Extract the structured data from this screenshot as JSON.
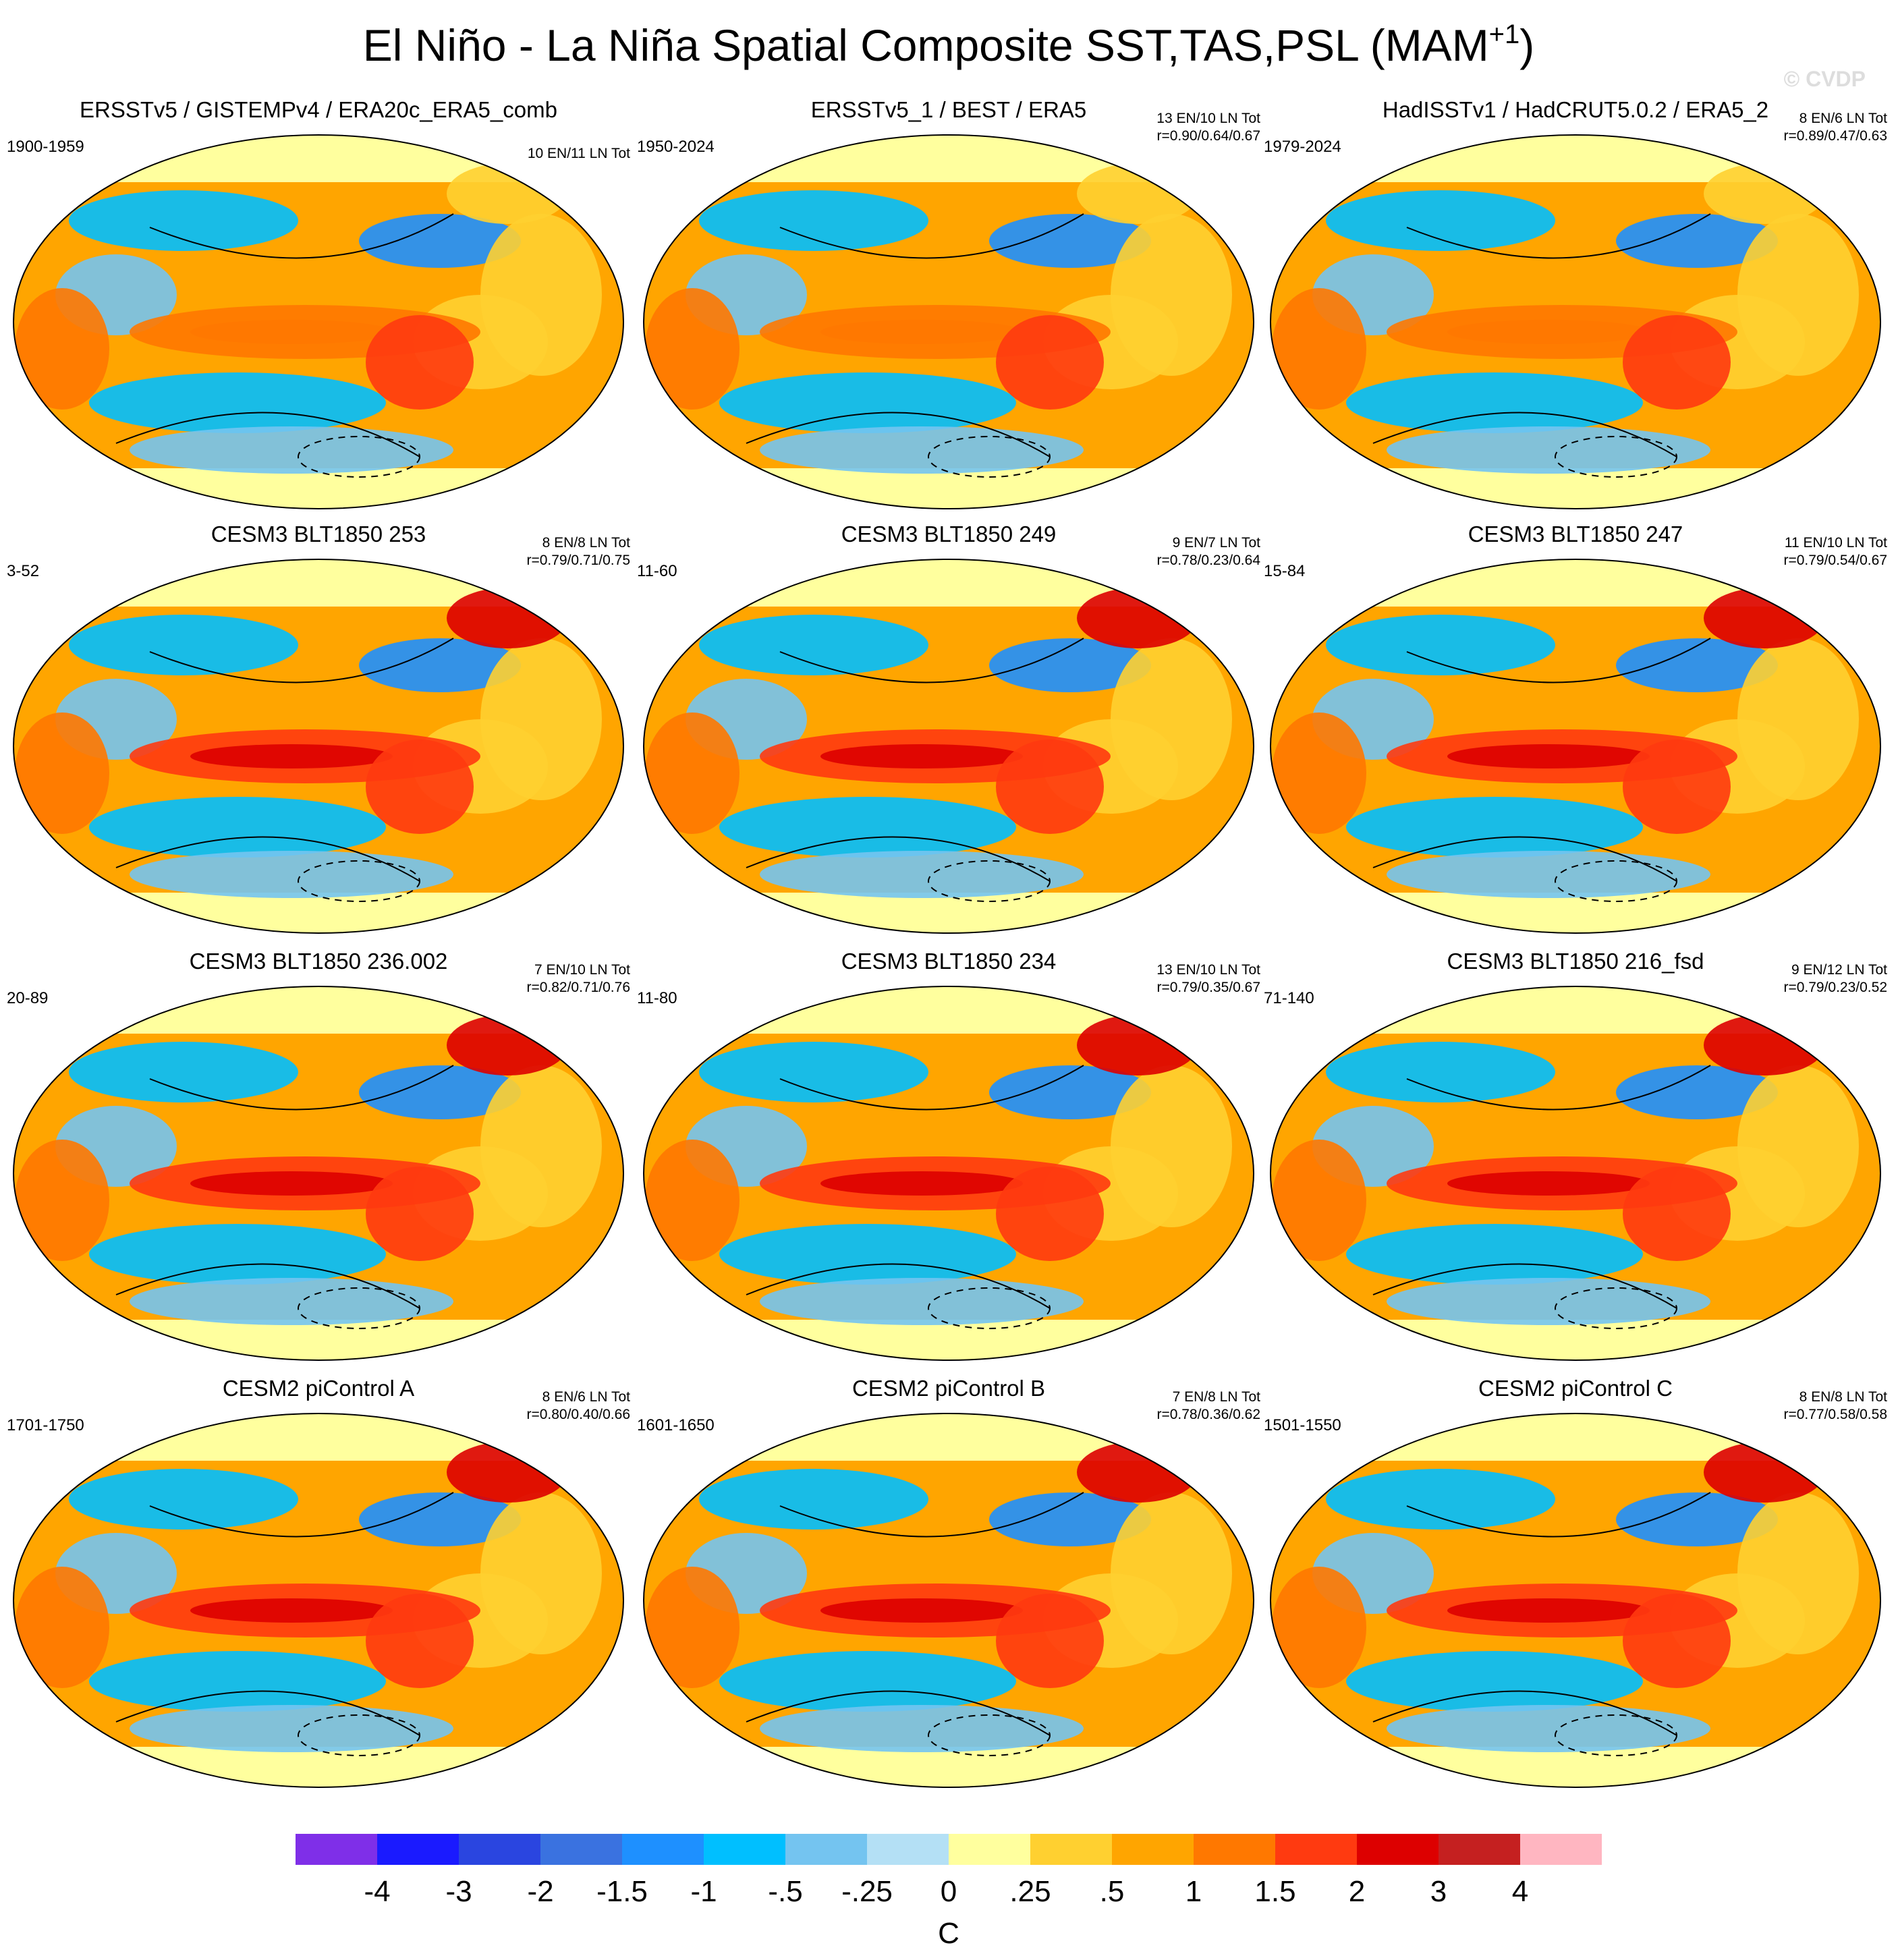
{
  "title": "El Niño - La Niña Spatial Composite SST,TAS,PSL (MAM",
  "title_superscript": "+1",
  "title_end": ")",
  "watermark": "© CVDP",
  "panels": [
    {
      "title": "ERSSTv5 / GISTEMPv4 / ERA20c_ERA5_comb",
      "period": "1900-1959",
      "counts": "10 EN/11 LN Tot"
    },
    {
      "title": "ERSSTv5_1 / BEST / ERA5",
      "period": "1950-2024",
      "counts": "13 EN/10 LN Tot",
      "correlation": "r=0.90/0.64/0.67"
    },
    {
      "title": "HadISSTv1 / HadCRUT5.0.2 / ERA5_2",
      "period": "1979-2024",
      "counts": "8 EN/6 LN Tot",
      "correlation": "r=0.89/0.47/0.63"
    },
    {
      "title": "CESM3 BLT1850 253",
      "period": "3-52",
      "counts": "8 EN/8 LN Tot",
      "correlation": "r=0.79/0.71/0.75"
    },
    {
      "title": "CESM3 BLT1850 249",
      "period": "11-60",
      "counts": "9 EN/7 LN Tot",
      "correlation": "r=0.78/0.23/0.64"
    },
    {
      "title": "CESM3 BLT1850 247",
      "period": "15-84",
      "counts": "11 EN/10 LN Tot",
      "correlation": "r=0.79/0.54/0.67"
    },
    {
      "title": "CESM3 BLT1850 236.002",
      "period": "20-89",
      "counts": "7 EN/10 LN Tot",
      "correlation": "r=0.82/0.71/0.76"
    },
    {
      "title": "CESM3 BLT1850 234",
      "period": "11-80",
      "counts": "13 EN/10 LN Tot",
      "correlation": "r=0.79/0.35/0.67"
    },
    {
      "title": "CESM3 BLT1850 216_fsd",
      "period": "71-140",
      "counts": "9 EN/12 LN Tot",
      "correlation": "r=0.79/0.23/0.52"
    },
    {
      "title": "CESM2 piControl A",
      "period": "1701-1750",
      "counts": "8 EN/6 LN Tot",
      "correlation": "r=0.80/0.40/0.66"
    },
    {
      "title": "CESM2 piControl B",
      "period": "1601-1650",
      "counts": "7 EN/8 LN Tot",
      "correlation": "r=0.78/0.36/0.62"
    },
    {
      "title": "CESM2 piControl C",
      "period": "1501-1550",
      "counts": "8 EN/8 LN Tot",
      "correlation": "r=0.77/0.58/0.58"
    }
  ],
  "colorbar": {
    "colors": [
      "#7f2fe8",
      "#1a1aff",
      "#2a45e0",
      "#3a72e0",
      "#1e90ff",
      "#00bfff",
      "#74c4f0",
      "#b4e0f5",
      "#ffff9e",
      "#ffd030",
      "#ffa500",
      "#ff7800",
      "#ff3a10",
      "#dd0000",
      "#c52020",
      "#ffb6c1"
    ],
    "labels": [
      "-4",
      "-3",
      "-2",
      "-1.5",
      "-1",
      "-.5",
      "-.25",
      "0",
      ".25",
      ".5",
      "1",
      "1.5",
      "2",
      "3",
      "4"
    ],
    "unit": "C"
  }
}
